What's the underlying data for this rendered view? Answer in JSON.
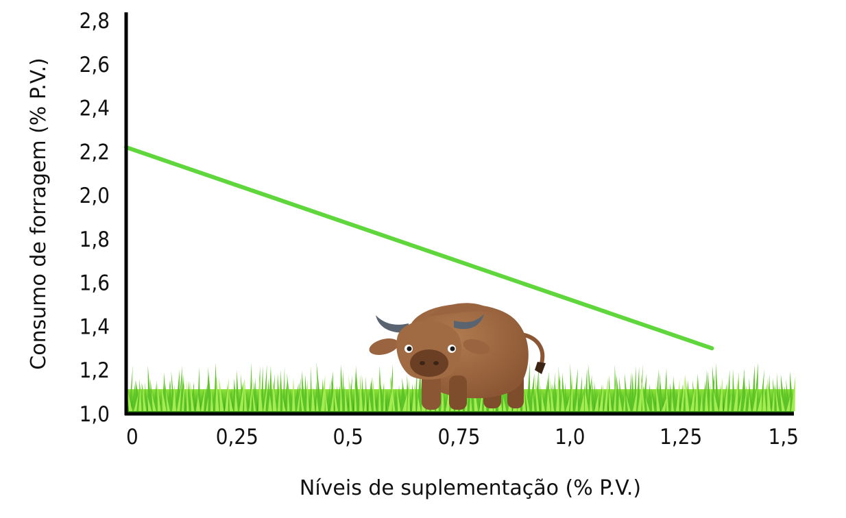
{
  "chart_data": {
    "type": "line",
    "xlabel": "Níveis de suplementação (% P.V.)",
    "ylabel": "Consumo de forragem (% P.V.)",
    "xlim": [
      0,
      1.5
    ],
    "ylim": [
      1.0,
      2.8
    ],
    "x_ticks": [
      "0",
      "0,25",
      "0,5",
      "0,75",
      "1,0",
      "1,25",
      "1,5"
    ],
    "y_ticks": [
      "1,0",
      "1,2",
      "1,4",
      "1,6",
      "1,8",
      "2,0",
      "2,2",
      "2,4",
      "2,6",
      "2,8"
    ],
    "series": [
      {
        "x": [
          0,
          1.32
        ],
        "y": [
          2.22,
          1.3
        ],
        "color": "#5fd63b"
      }
    ],
    "grid": false,
    "decorations": [
      "grass",
      "cartoon-bull"
    ]
  }
}
